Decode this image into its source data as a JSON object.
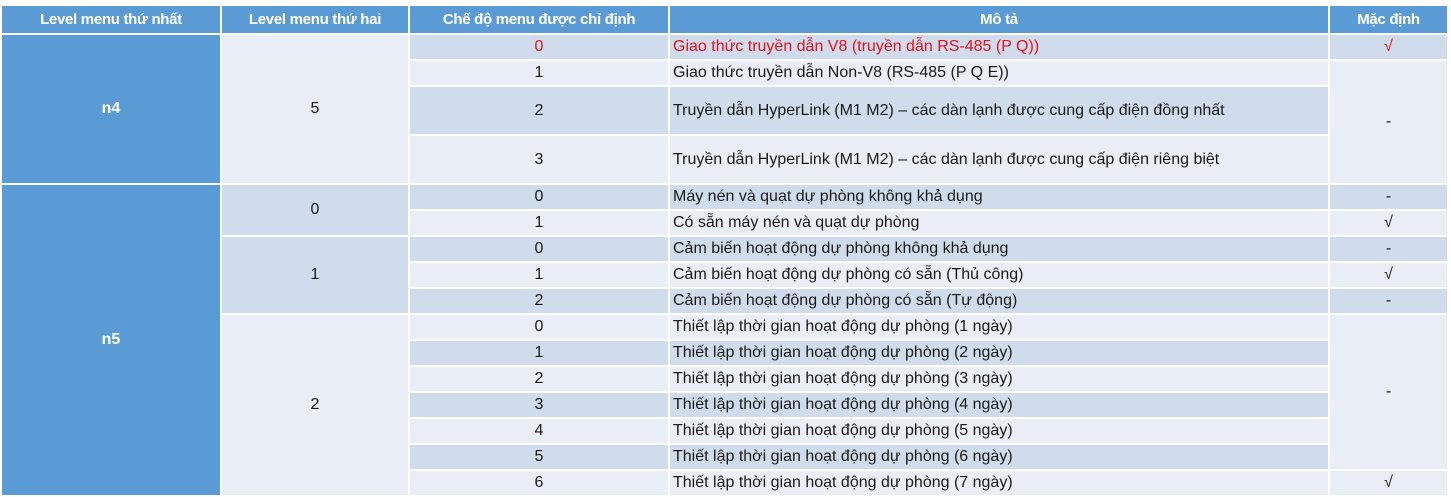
{
  "headers": [
    "Level menu thứ nhất",
    "Level menu thứ hai",
    "Chế độ menu được chỉ định",
    "Mô tả",
    "Mặc định"
  ],
  "colors": {
    "header_bg": "#5b9bd5",
    "row_dark": "#d0dcec",
    "row_light": "#e9edf5",
    "highlight_text": "#e8101a"
  },
  "rows": [
    {
      "level1": "n4",
      "level2": "5",
      "mode": "0",
      "description": "Giao thức truyền dẫn V8 (truyền dẫn RS-485 (P Q))",
      "default": "√",
      "highlight": true
    },
    {
      "mode": "1",
      "description": "Giao thức truyền dẫn Non-V8 (RS-485 (P Q E))",
      "default": "-"
    },
    {
      "mode": "2",
      "description": "Truyền dẫn HyperLink (M1 M2) – các dàn lạnh được cung cấp điện đồng nhất"
    },
    {
      "mode": "3",
      "description": "Truyền dẫn HyperLink (M1 M2) – các dàn lạnh được cung cấp điện riêng biệt"
    },
    {
      "level1": "n5",
      "level2": "0",
      "mode": "0",
      "description": "Máy nén và quạt dự phòng không khả dụng",
      "default": "-"
    },
    {
      "mode": "1",
      "description": "Có sẵn máy nén và quạt dự phòng",
      "default": "√"
    },
    {
      "level2": "1",
      "mode": "0",
      "description": "Cảm biến hoạt động dự phòng không khả dụng",
      "default": "-"
    },
    {
      "mode": "1",
      "description": "Cảm biến hoạt động dự phòng có sẵn (Thủ công)",
      "default": "√"
    },
    {
      "mode": "2",
      "description": "Cảm biến hoạt động dự phòng có sẵn (Tự động)",
      "default": "-"
    },
    {
      "level2": "2",
      "mode": "0",
      "description": "Thiết lập thời gian hoạt động dự phòng (1 ngày)",
      "default": "-"
    },
    {
      "mode": "1",
      "description": "Thiết lập thời gian hoạt động dự phòng (2 ngày)"
    },
    {
      "mode": "2",
      "description": "Thiết lập thời gian hoạt động dự phòng (3 ngày)"
    },
    {
      "mode": "3",
      "description": "Thiết lập thời gian hoạt động dự phòng (4 ngày)"
    },
    {
      "mode": "4",
      "description": "Thiết lập thời gian hoạt động dự phòng (5 ngày)"
    },
    {
      "mode": "5",
      "description": "Thiết lập thời gian hoạt động dự phòng (6 ngày)"
    },
    {
      "mode": "6",
      "description": "Thiết lập thời gian hoạt động dự phòng (7 ngày)",
      "default": "√"
    }
  ]
}
